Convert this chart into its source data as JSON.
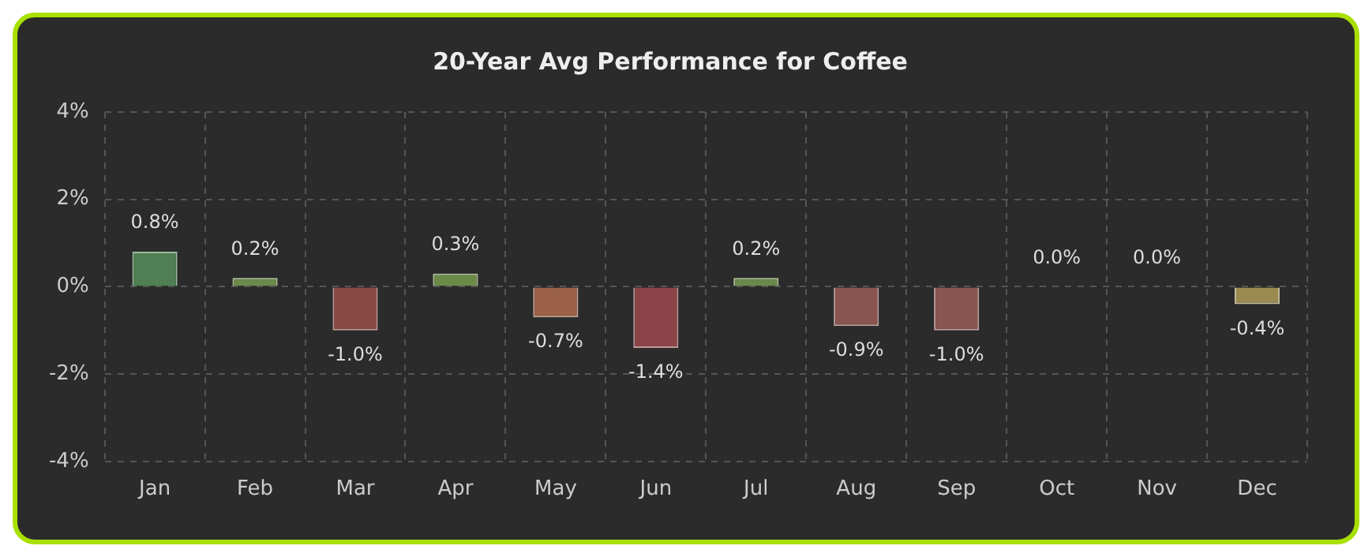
{
  "chart_data": {
    "type": "bar",
    "title": "20-Year Avg Performance for Coffee",
    "categories": [
      "Jan",
      "Feb",
      "Mar",
      "Apr",
      "May",
      "Jun",
      "Jul",
      "Aug",
      "Sep",
      "Oct",
      "Nov",
      "Dec"
    ],
    "values": [
      0.8,
      0.2,
      -1.0,
      0.3,
      -0.7,
      -1.4,
      0.2,
      -0.9,
      -1.0,
      0.0,
      0.0,
      -0.4
    ],
    "colors": [
      "#4f7f52",
      "#6b8a4a",
      "#8a4a44",
      "#6b8a4a",
      "#9a6048",
      "#8a4448",
      "#6b8a4a",
      "#8a5550",
      "#8a5550",
      "#6b8a4a",
      "#6b8a4a",
      "#9a8a50"
    ],
    "value_labels": [
      "0.8%",
      "0.2%",
      "-1.0%",
      "0.3%",
      "-0.7%",
      "-1.4%",
      "0.2%",
      "-0.9%",
      "-1.0%",
      "0.0%",
      "0.0%",
      "-0.4%"
    ],
    "ylim": [
      -4,
      4
    ],
    "yticks": [
      {
        "value": -4,
        "label": "-4%"
      },
      {
        "value": -2,
        "label": "-2%"
      },
      {
        "value": 0,
        "label": "0%"
      },
      {
        "value": 2,
        "label": "2%"
      },
      {
        "value": 4,
        "label": "4%"
      }
    ],
    "grid": true,
    "legend": false
  }
}
